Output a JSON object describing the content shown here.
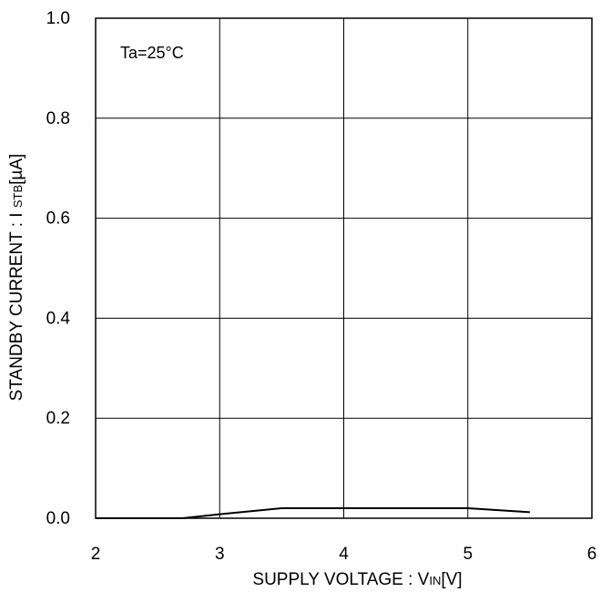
{
  "chart_data": {
    "type": "line",
    "xlabel": {
      "main": "SUPPLY VOLTAGE : V",
      "sub": "IN",
      "unit": "[V]"
    },
    "ylabel": {
      "main": "STANDBY CURRENT : I ",
      "sub": "STB",
      "unit": "[µA]"
    },
    "xlim": [
      2,
      6
    ],
    "ylim": [
      0.0,
      1.0
    ],
    "xticks": [
      2,
      3,
      4,
      5,
      6
    ],
    "xtick_labels": [
      "2",
      "3",
      "4",
      "5",
      "6"
    ],
    "yticks": [
      0.0,
      0.2,
      0.4,
      0.6,
      0.8,
      1.0
    ],
    "ytick_labels": [
      "0.0",
      "0.2",
      "0.4",
      "0.6",
      "0.8",
      "1.0"
    ],
    "grid": true,
    "annotation": "Ta=25°C",
    "series": [
      {
        "color": "#000000",
        "x": [
          2.0,
          2.7,
          3.0,
          3.5,
          4.0,
          4.5,
          5.0,
          5.5
        ],
        "y": [
          0.0,
          0.0,
          0.008,
          0.02,
          0.02,
          0.02,
          0.02,
          0.012
        ]
      }
    ]
  }
}
